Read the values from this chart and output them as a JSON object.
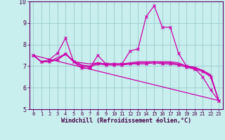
{
  "xlabel": "Windchill (Refroidissement éolien,°C)",
  "background_color": "#c8eeee",
  "grid_color": "#99cccc",
  "line_color": "#cc00aa",
  "xlim": [
    -0.5,
    23.5
  ],
  "ylim": [
    5.0,
    10.0
  ],
  "yticks": [
    5,
    6,
    7,
    8,
    9,
    10
  ],
  "xticks": [
    0,
    1,
    2,
    3,
    4,
    5,
    6,
    7,
    8,
    9,
    10,
    11,
    12,
    13,
    14,
    15,
    16,
    17,
    18,
    19,
    20,
    21,
    22,
    23
  ],
  "series": [
    {
      "x": [
        0,
        1,
        2,
        3,
        4,
        5,
        6,
        7,
        8,
        9,
        10,
        11,
        12,
        13,
        14,
        15,
        16,
        17,
        18,
        19,
        20,
        21,
        22,
        23
      ],
      "y": [
        7.5,
        7.2,
        7.3,
        7.6,
        8.3,
        7.2,
        6.9,
        6.9,
        7.5,
        7.1,
        7.1,
        7.1,
        7.7,
        7.8,
        9.3,
        9.8,
        8.8,
        8.8,
        7.6,
        7.0,
        6.9,
        6.5,
        5.9,
        5.4
      ],
      "marker": "x",
      "linestyle": "-",
      "linewidth": 0.9,
      "markersize": 3.0
    },
    {
      "x": [
        0,
        1,
        2,
        3,
        4,
        5,
        6,
        7,
        8,
        9,
        10,
        11,
        12,
        13,
        14,
        15,
        16,
        17,
        18,
        19,
        20,
        21,
        22,
        23
      ],
      "y": [
        7.5,
        7.2,
        7.2,
        7.3,
        7.6,
        7.2,
        7.15,
        7.1,
        7.15,
        7.1,
        7.1,
        7.1,
        7.15,
        7.2,
        7.2,
        7.2,
        7.2,
        7.2,
        7.15,
        7.0,
        6.9,
        6.8,
        6.6,
        5.4
      ],
      "marker": null,
      "linestyle": "-",
      "linewidth": 0.9,
      "markersize": 0
    },
    {
      "x": [
        0,
        1,
        2,
        3,
        4,
        5,
        6,
        7,
        8,
        9,
        10,
        11,
        12,
        13,
        14,
        15,
        16,
        17,
        18,
        19,
        20,
        21,
        22,
        23
      ],
      "y": [
        7.5,
        7.2,
        7.2,
        7.4,
        7.55,
        7.25,
        7.05,
        7.0,
        7.15,
        7.1,
        7.1,
        7.1,
        7.1,
        7.15,
        7.15,
        7.2,
        7.15,
        7.15,
        7.1,
        7.0,
        6.95,
        6.8,
        6.55,
        5.4
      ],
      "marker": null,
      "linestyle": "-",
      "linewidth": 0.9,
      "markersize": 0
    },
    {
      "x": [
        0,
        23
      ],
      "y": [
        7.5,
        5.4
      ],
      "marker": null,
      "linestyle": "-",
      "linewidth": 0.9,
      "markersize": 0
    },
    {
      "x": [
        0,
        1,
        2,
        3,
        4,
        5,
        6,
        7,
        8,
        9,
        10,
        11,
        12,
        13,
        14,
        15,
        16,
        17,
        18,
        19,
        20,
        21,
        22,
        23
      ],
      "y": [
        7.5,
        7.2,
        7.2,
        7.3,
        7.55,
        7.2,
        7.0,
        6.95,
        7.1,
        7.05,
        7.05,
        7.05,
        7.1,
        7.1,
        7.1,
        7.15,
        7.1,
        7.1,
        7.05,
        6.95,
        6.85,
        6.75,
        6.5,
        5.4
      ],
      "marker": "x",
      "linestyle": "-",
      "linewidth": 0.9,
      "markersize": 2.5
    }
  ]
}
